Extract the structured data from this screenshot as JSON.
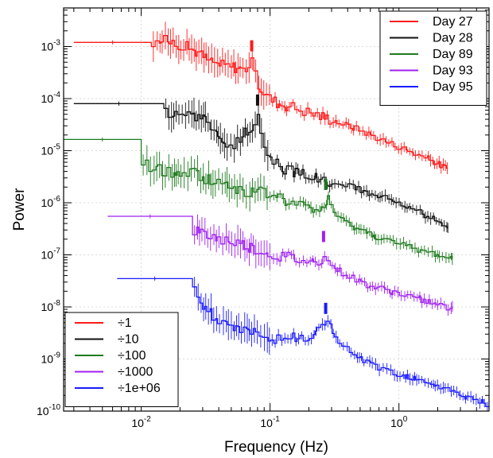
{
  "chart_data": {
    "type": "line",
    "title": "",
    "xlabel": "Frequency (Hz)",
    "ylabel": "Power",
    "x_scale": "log",
    "y_scale": "log",
    "xlim": [
      0.0025,
      5
    ],
    "ylim": [
      1e-10,
      0.0055
    ],
    "grid": true,
    "x_ticks": [
      {
        "value": 0.01,
        "label": "10",
        "exp": "-2"
      },
      {
        "value": 0.1,
        "label": "10",
        "exp": "-1"
      },
      {
        "value": 1,
        "label": "10",
        "exp": "0"
      }
    ],
    "y_ticks": [
      {
        "value": 1e-10,
        "label": "10",
        "exp": "-10"
      },
      {
        "value": 1e-09,
        "label": "10",
        "exp": "-9"
      },
      {
        "value": 1e-08,
        "label": "10",
        "exp": "-8"
      },
      {
        "value": 1e-07,
        "label": "10",
        "exp": "-7"
      },
      {
        "value": 1e-06,
        "label": "10",
        "exp": "-6"
      },
      {
        "value": 1e-05,
        "label": "10",
        "exp": "-5"
      },
      {
        "value": 0.0001,
        "label": "10",
        "exp": "-4"
      },
      {
        "value": 0.001,
        "label": "10",
        "exp": "-3"
      }
    ],
    "series_legend_position": "top-right",
    "scale_legend_position": "bottom-left",
    "series": [
      {
        "name": "Day 27",
        "scale_label": "÷1",
        "color": "#ff1a1a",
        "qpo_freq": 0.072,
        "x": [
          0.003,
          0.0055,
          0.008,
          0.012,
          0.016,
          0.02,
          0.026,
          0.032,
          0.04,
          0.048,
          0.056,
          0.062,
          0.068,
          0.072,
          0.076,
          0.082,
          0.09,
          0.1,
          0.12,
          0.15,
          0.2,
          0.3,
          0.5,
          0.8,
          1.2,
          1.7,
          2.4
        ],
        "y": [
          0.0012,
          0.0012,
          0.0012,
          0.0012,
          0.0013,
          0.0011,
          0.00085,
          0.0006,
          0.00045,
          0.00042,
          0.0004,
          0.00036,
          0.00042,
          0.00055,
          0.0003,
          0.00018,
          0.00013,
          0.0001,
          8e-05,
          7e-05,
          5.5e-05,
          4e-05,
          2.5e-05,
          1.5e-05,
          1e-05,
          7e-06,
          4.5e-06
        ]
      },
      {
        "name": "Day 28",
        "scale_label": "÷10",
        "color": "#111111",
        "qpo_freq": 0.08,
        "x": [
          0.003,
          0.006,
          0.01,
          0.015,
          0.02,
          0.025,
          0.03,
          0.038,
          0.045,
          0.052,
          0.06,
          0.068,
          0.075,
          0.08,
          0.085,
          0.09,
          0.1,
          0.12,
          0.15,
          0.2,
          0.3,
          0.5,
          0.8,
          1.2,
          1.7,
          2.4
        ],
        "y": [
          8e-05,
          8e-05,
          8e-05,
          5e-05,
          6e-05,
          4.5e-05,
          4e-05,
          2.5e-05,
          1.2e-05,
          1e-05,
          2e-05,
          2.2e-05,
          3.5e-05,
          5e-05,
          2.5e-05,
          1.2e-05,
          8e-06,
          5e-06,
          4e-06,
          3.5e-06,
          2.5e-06,
          1.8e-06,
          1.2e-06,
          8e-07,
          5.5e-07,
          3.5e-07
        ]
      },
      {
        "name": "Day 89",
        "scale_label": "÷100",
        "color": "#1e7a1e",
        "qpo_freq": 0.27,
        "x": [
          0.0025,
          0.004,
          0.006,
          0.01,
          0.015,
          0.02,
          0.025,
          0.03,
          0.04,
          0.05,
          0.07,
          0.1,
          0.13,
          0.17,
          0.22,
          0.26,
          0.28,
          0.32,
          0.4,
          0.6,
          1.0,
          1.5,
          2.0,
          2.6
        ],
        "y": [
          3e-05,
          3e-05,
          1e-05,
          6e-06,
          4e-06,
          3.5e-06,
          4e-06,
          3e-06,
          2.5e-06,
          2e-06,
          1.6e-06,
          1.5e-06,
          1.1e-06,
          9e-07,
          7e-07,
          8e-07,
          1.2e-06,
          6e-07,
          4e-07,
          2.5e-07,
          1.6e-07,
          1.2e-07,
          1e-07,
          8.5e-08
        ]
      },
      {
        "name": "Day 93",
        "scale_label": "÷1000",
        "color": "#a020f0",
        "qpo_freq": 0.26,
        "x": [
          0.0055,
          0.012,
          0.02,
          0.025,
          0.03,
          0.04,
          0.05,
          0.07,
          0.1,
          0.13,
          0.17,
          0.22,
          0.25,
          0.27,
          0.3,
          0.4,
          0.6,
          1.0,
          1.5,
          2.0,
          2.6
        ],
        "y": [
          5.5e-07,
          5.5e-07,
          5.5e-07,
          3e-07,
          2.5e-07,
          2e-07,
          1.8e-07,
          1.4e-07,
          1e-07,
          9e-08,
          8e-08,
          7e-08,
          8e-08,
          1.2e-07,
          6e-08,
          4e-08,
          2.5e-08,
          1.8e-08,
          1.4e-08,
          1.1e-08,
          9e-09
        ]
      },
      {
        "name": "Day 95",
        "scale_label": "÷1e+06",
        "color": "#1a1aff",
        "qpo_freq": 0.27,
        "x": [
          0.0065,
          0.012,
          0.018,
          0.025,
          0.03,
          0.04,
          0.05,
          0.06,
          0.07,
          0.08,
          0.1,
          0.13,
          0.17,
          0.22,
          0.26,
          0.28,
          0.32,
          0.4,
          0.6,
          0.8,
          1.0,
          1.5,
          2.0,
          3.0,
          4.0,
          5.0
        ],
        "y": [
          3.5e-08,
          3.5e-08,
          3.5e-08,
          3.8e-08,
          1e-08,
          6e-09,
          5e-09,
          3e-09,
          4e-09,
          3e-09,
          2e-09,
          3e-09,
          2.2e-09,
          2.5e-09,
          4e-09,
          5e-09,
          2.5e-09,
          1.5e-09,
          8e-10,
          6e-10,
          5e-10,
          4e-10,
          3e-10,
          2e-10,
          1.6e-10,
          1.3e-10
        ]
      }
    ]
  }
}
